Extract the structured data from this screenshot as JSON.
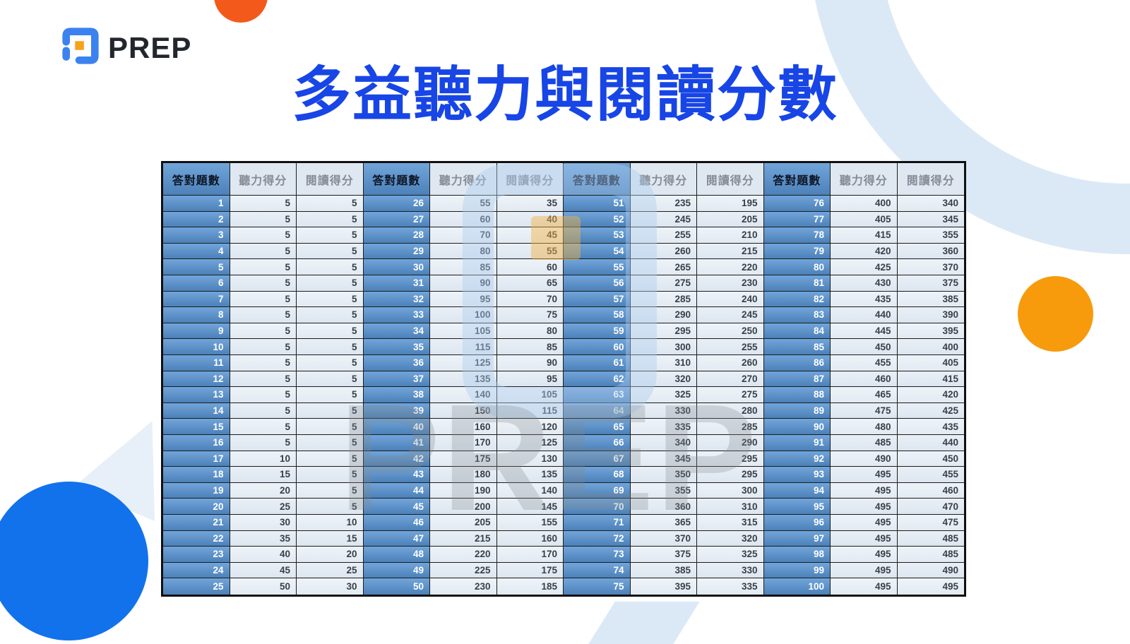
{
  "logo": {
    "text": "PREP"
  },
  "title": {
    "text": "多益聽力與閱讀分數"
  },
  "watermark": {
    "text": "PREP"
  },
  "table": {
    "column_headers": [
      "答對題數",
      "聽力得分",
      "閱讀得分"
    ],
    "header_repeat": 4,
    "groups": [
      {
        "rows": [
          [
            1,
            5,
            5
          ],
          [
            2,
            5,
            5
          ],
          [
            3,
            5,
            5
          ],
          [
            4,
            5,
            5
          ],
          [
            5,
            5,
            5
          ],
          [
            6,
            5,
            5
          ],
          [
            7,
            5,
            5
          ],
          [
            8,
            5,
            5
          ],
          [
            9,
            5,
            5
          ],
          [
            10,
            5,
            5
          ],
          [
            11,
            5,
            5
          ],
          [
            12,
            5,
            5
          ],
          [
            13,
            5,
            5
          ],
          [
            14,
            5,
            5
          ],
          [
            15,
            5,
            5
          ],
          [
            16,
            5,
            5
          ],
          [
            17,
            10,
            5
          ],
          [
            18,
            15,
            5
          ],
          [
            19,
            20,
            5
          ],
          [
            20,
            25,
            5
          ],
          [
            21,
            30,
            10
          ],
          [
            22,
            35,
            15
          ],
          [
            23,
            40,
            20
          ],
          [
            24,
            45,
            25
          ],
          [
            25,
            50,
            30
          ]
        ]
      },
      {
        "rows": [
          [
            26,
            55,
            35
          ],
          [
            27,
            60,
            40
          ],
          [
            28,
            70,
            45
          ],
          [
            29,
            80,
            55
          ],
          [
            30,
            85,
            60
          ],
          [
            31,
            90,
            65
          ],
          [
            32,
            95,
            70
          ],
          [
            33,
            100,
            75
          ],
          [
            34,
            105,
            80
          ],
          [
            35,
            115,
            85
          ],
          [
            36,
            125,
            90
          ],
          [
            37,
            135,
            95
          ],
          [
            38,
            140,
            105
          ],
          [
            39,
            150,
            115
          ],
          [
            40,
            160,
            120
          ],
          [
            41,
            170,
            125
          ],
          [
            42,
            175,
            130
          ],
          [
            43,
            180,
            135
          ],
          [
            44,
            190,
            140
          ],
          [
            45,
            200,
            145
          ],
          [
            46,
            205,
            155
          ],
          [
            47,
            215,
            160
          ],
          [
            48,
            220,
            170
          ],
          [
            49,
            225,
            175
          ],
          [
            50,
            230,
            185
          ]
        ]
      },
      {
        "rows": [
          [
            51,
            235,
            195
          ],
          [
            52,
            245,
            205
          ],
          [
            53,
            255,
            210
          ],
          [
            54,
            260,
            215
          ],
          [
            55,
            265,
            220
          ],
          [
            56,
            275,
            230
          ],
          [
            57,
            285,
            240
          ],
          [
            58,
            290,
            245
          ],
          [
            59,
            295,
            250
          ],
          [
            60,
            300,
            255
          ],
          [
            61,
            310,
            260
          ],
          [
            62,
            320,
            270
          ],
          [
            63,
            325,
            275
          ],
          [
            64,
            330,
            280
          ],
          [
            65,
            335,
            285
          ],
          [
            66,
            340,
            290
          ],
          [
            67,
            345,
            295
          ],
          [
            68,
            350,
            295
          ],
          [
            69,
            355,
            300
          ],
          [
            70,
            360,
            310
          ],
          [
            71,
            365,
            315
          ],
          [
            72,
            370,
            320
          ],
          [
            73,
            375,
            325
          ],
          [
            74,
            385,
            330
          ],
          [
            75,
            395,
            335
          ]
        ]
      },
      {
        "rows": [
          [
            76,
            400,
            340
          ],
          [
            77,
            405,
            345
          ],
          [
            78,
            415,
            355
          ],
          [
            79,
            420,
            360
          ],
          [
            80,
            425,
            370
          ],
          [
            81,
            430,
            375
          ],
          [
            82,
            435,
            385
          ],
          [
            83,
            440,
            390
          ],
          [
            84,
            445,
            395
          ],
          [
            85,
            450,
            400
          ],
          [
            86,
            455,
            405
          ],
          [
            87,
            460,
            415
          ],
          [
            88,
            465,
            420
          ],
          [
            89,
            475,
            425
          ],
          [
            90,
            480,
            435
          ],
          [
            91,
            485,
            440
          ],
          [
            92,
            490,
            450
          ],
          [
            93,
            495,
            455
          ],
          [
            94,
            495,
            460
          ],
          [
            95,
            495,
            470
          ],
          [
            96,
            495,
            475
          ],
          [
            97,
            495,
            485
          ],
          [
            98,
            495,
            485
          ],
          [
            99,
            495,
            490
          ],
          [
            100,
            495,
            495
          ]
        ]
      }
    ]
  },
  "colors": {
    "title_blue": "#1745e6",
    "header_fill_blue": "#4f81bd",
    "light_cell": "#e4ebf3",
    "decor_light_blue": "#dbe9f6",
    "orange_circle": "#f79b0c",
    "red_orange_circle": "#f4591c",
    "big_blue_circle": "#1272ec",
    "logo_blue": "#3b82f0",
    "logo_orange": "#f6a21d"
  }
}
